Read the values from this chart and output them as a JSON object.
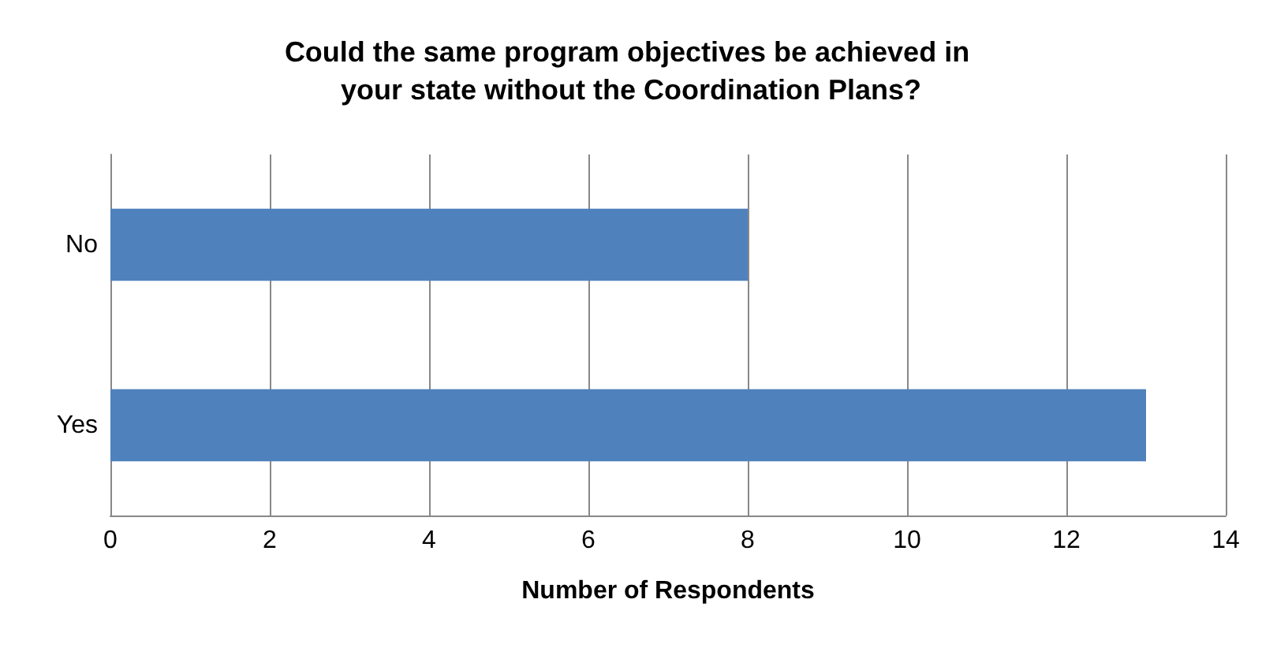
{
  "chart_data": {
    "type": "bar",
    "orientation": "horizontal",
    "title": "Could the same program objectives be achieved in your state without the Coordination Plans?",
    "xlabel": "Number of Respondents",
    "categories": [
      "No",
      "Yes"
    ],
    "values": [
      8,
      13
    ],
    "color": "#4f81bd",
    "xlim": [
      0,
      14
    ],
    "xticks": [
      0,
      2,
      4,
      6,
      8,
      10,
      12,
      14
    ],
    "grid": "x"
  }
}
